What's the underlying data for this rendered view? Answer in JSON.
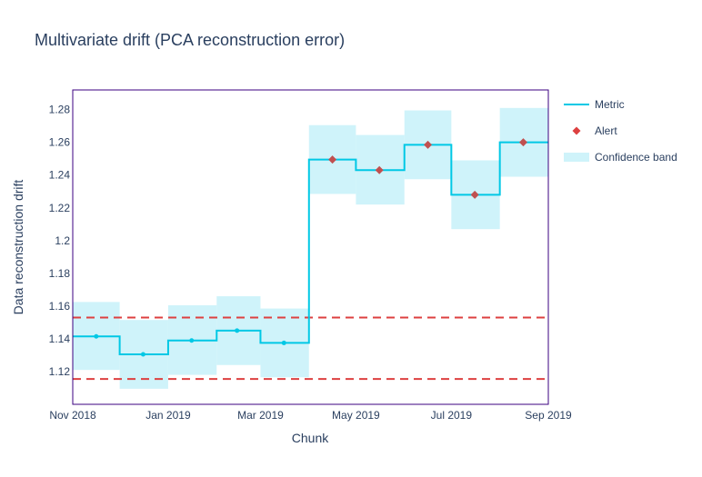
{
  "chart_data": {
    "type": "line",
    "title": "Multivariate drift (PCA reconstruction error)",
    "xlabel": "Chunk",
    "ylabel": "Data reconstruction drift",
    "x_ticks": [
      {
        "date": "2018-11-01",
        "label": "Nov 2018"
      },
      {
        "date": "2019-01-01",
        "label": "Jan 2019"
      },
      {
        "date": "2019-03-01",
        "label": "Mar 2019"
      },
      {
        "date": "2019-05-01",
        "label": "May 2019"
      },
      {
        "date": "2019-07-01",
        "label": "Jul 2019"
      },
      {
        "date": "2019-09-01",
        "label": "Sep 2019"
      }
    ],
    "y_ticks": [
      1.12,
      1.14,
      1.16,
      1.18,
      1.2,
      1.22,
      1.24,
      1.26,
      1.28
    ],
    "y_tick_labels": [
      "1.12",
      "1.14",
      "1.16",
      "1.18",
      "1.2",
      "1.22",
      "1.24",
      "1.26",
      "1.28"
    ],
    "ylim": [
      1.1,
      1.292
    ],
    "xlim": [
      "2018-11-01",
      "2019-09-01"
    ],
    "chunks": [
      {
        "start": "2018-11-01",
        "end": "2018-12-01",
        "mid": "2018-11-16",
        "value": 1.1415,
        "lower": 1.121,
        "upper": 1.1625,
        "alert": false
      },
      {
        "start": "2018-12-01",
        "end": "2019-01-01",
        "mid": "2018-12-16",
        "value": 1.1305,
        "lower": 1.1095,
        "upper": 1.1515,
        "alert": false
      },
      {
        "start": "2019-01-01",
        "end": "2019-02-01",
        "mid": "2019-01-16",
        "value": 1.139,
        "lower": 1.118,
        "upper": 1.1605,
        "alert": false
      },
      {
        "start": "2019-02-01",
        "end": "2019-03-01",
        "mid": "2019-02-14",
        "value": 1.145,
        "lower": 1.124,
        "upper": 1.166,
        "alert": false
      },
      {
        "start": "2019-03-01",
        "end": "2019-04-01",
        "mid": "2019-03-16",
        "value": 1.1375,
        "lower": 1.1165,
        "upper": 1.1585,
        "alert": false
      },
      {
        "start": "2019-04-01",
        "end": "2019-05-01",
        "mid": "2019-04-16",
        "value": 1.2495,
        "lower": 1.2285,
        "upper": 1.2705,
        "alert": true
      },
      {
        "start": "2019-05-01",
        "end": "2019-06-01",
        "mid": "2019-05-16",
        "value": 1.243,
        "lower": 1.222,
        "upper": 1.2645,
        "alert": true
      },
      {
        "start": "2019-06-01",
        "end": "2019-07-01",
        "mid": "2019-06-16",
        "value": 1.2585,
        "lower": 1.2375,
        "upper": 1.2795,
        "alert": true
      },
      {
        "start": "2019-07-01",
        "end": "2019-08-01",
        "mid": "2019-07-16",
        "value": 1.228,
        "lower": 1.207,
        "upper": 1.249,
        "alert": true
      },
      {
        "start": "2019-08-01",
        "end": "2019-09-01",
        "mid": "2019-08-16",
        "value": 1.26,
        "lower": 1.239,
        "upper": 1.281,
        "alert": true
      }
    ],
    "thresholds": {
      "upper": 1.153,
      "lower": 1.1155
    },
    "legend_position": "top-right",
    "legend": [
      {
        "key": "metric",
        "label": "Metric"
      },
      {
        "key": "alert",
        "label": "Alert"
      },
      {
        "key": "band",
        "label": "Confidence band"
      }
    ],
    "grid": false,
    "colors": {
      "metric": "#00c8e5",
      "alert": "#dd4040",
      "alert_marker": "#c05050",
      "band": "#cff3fa",
      "threshold": "#dd4040",
      "frame": "#3b0280",
      "text": "#2a3f5f"
    }
  }
}
